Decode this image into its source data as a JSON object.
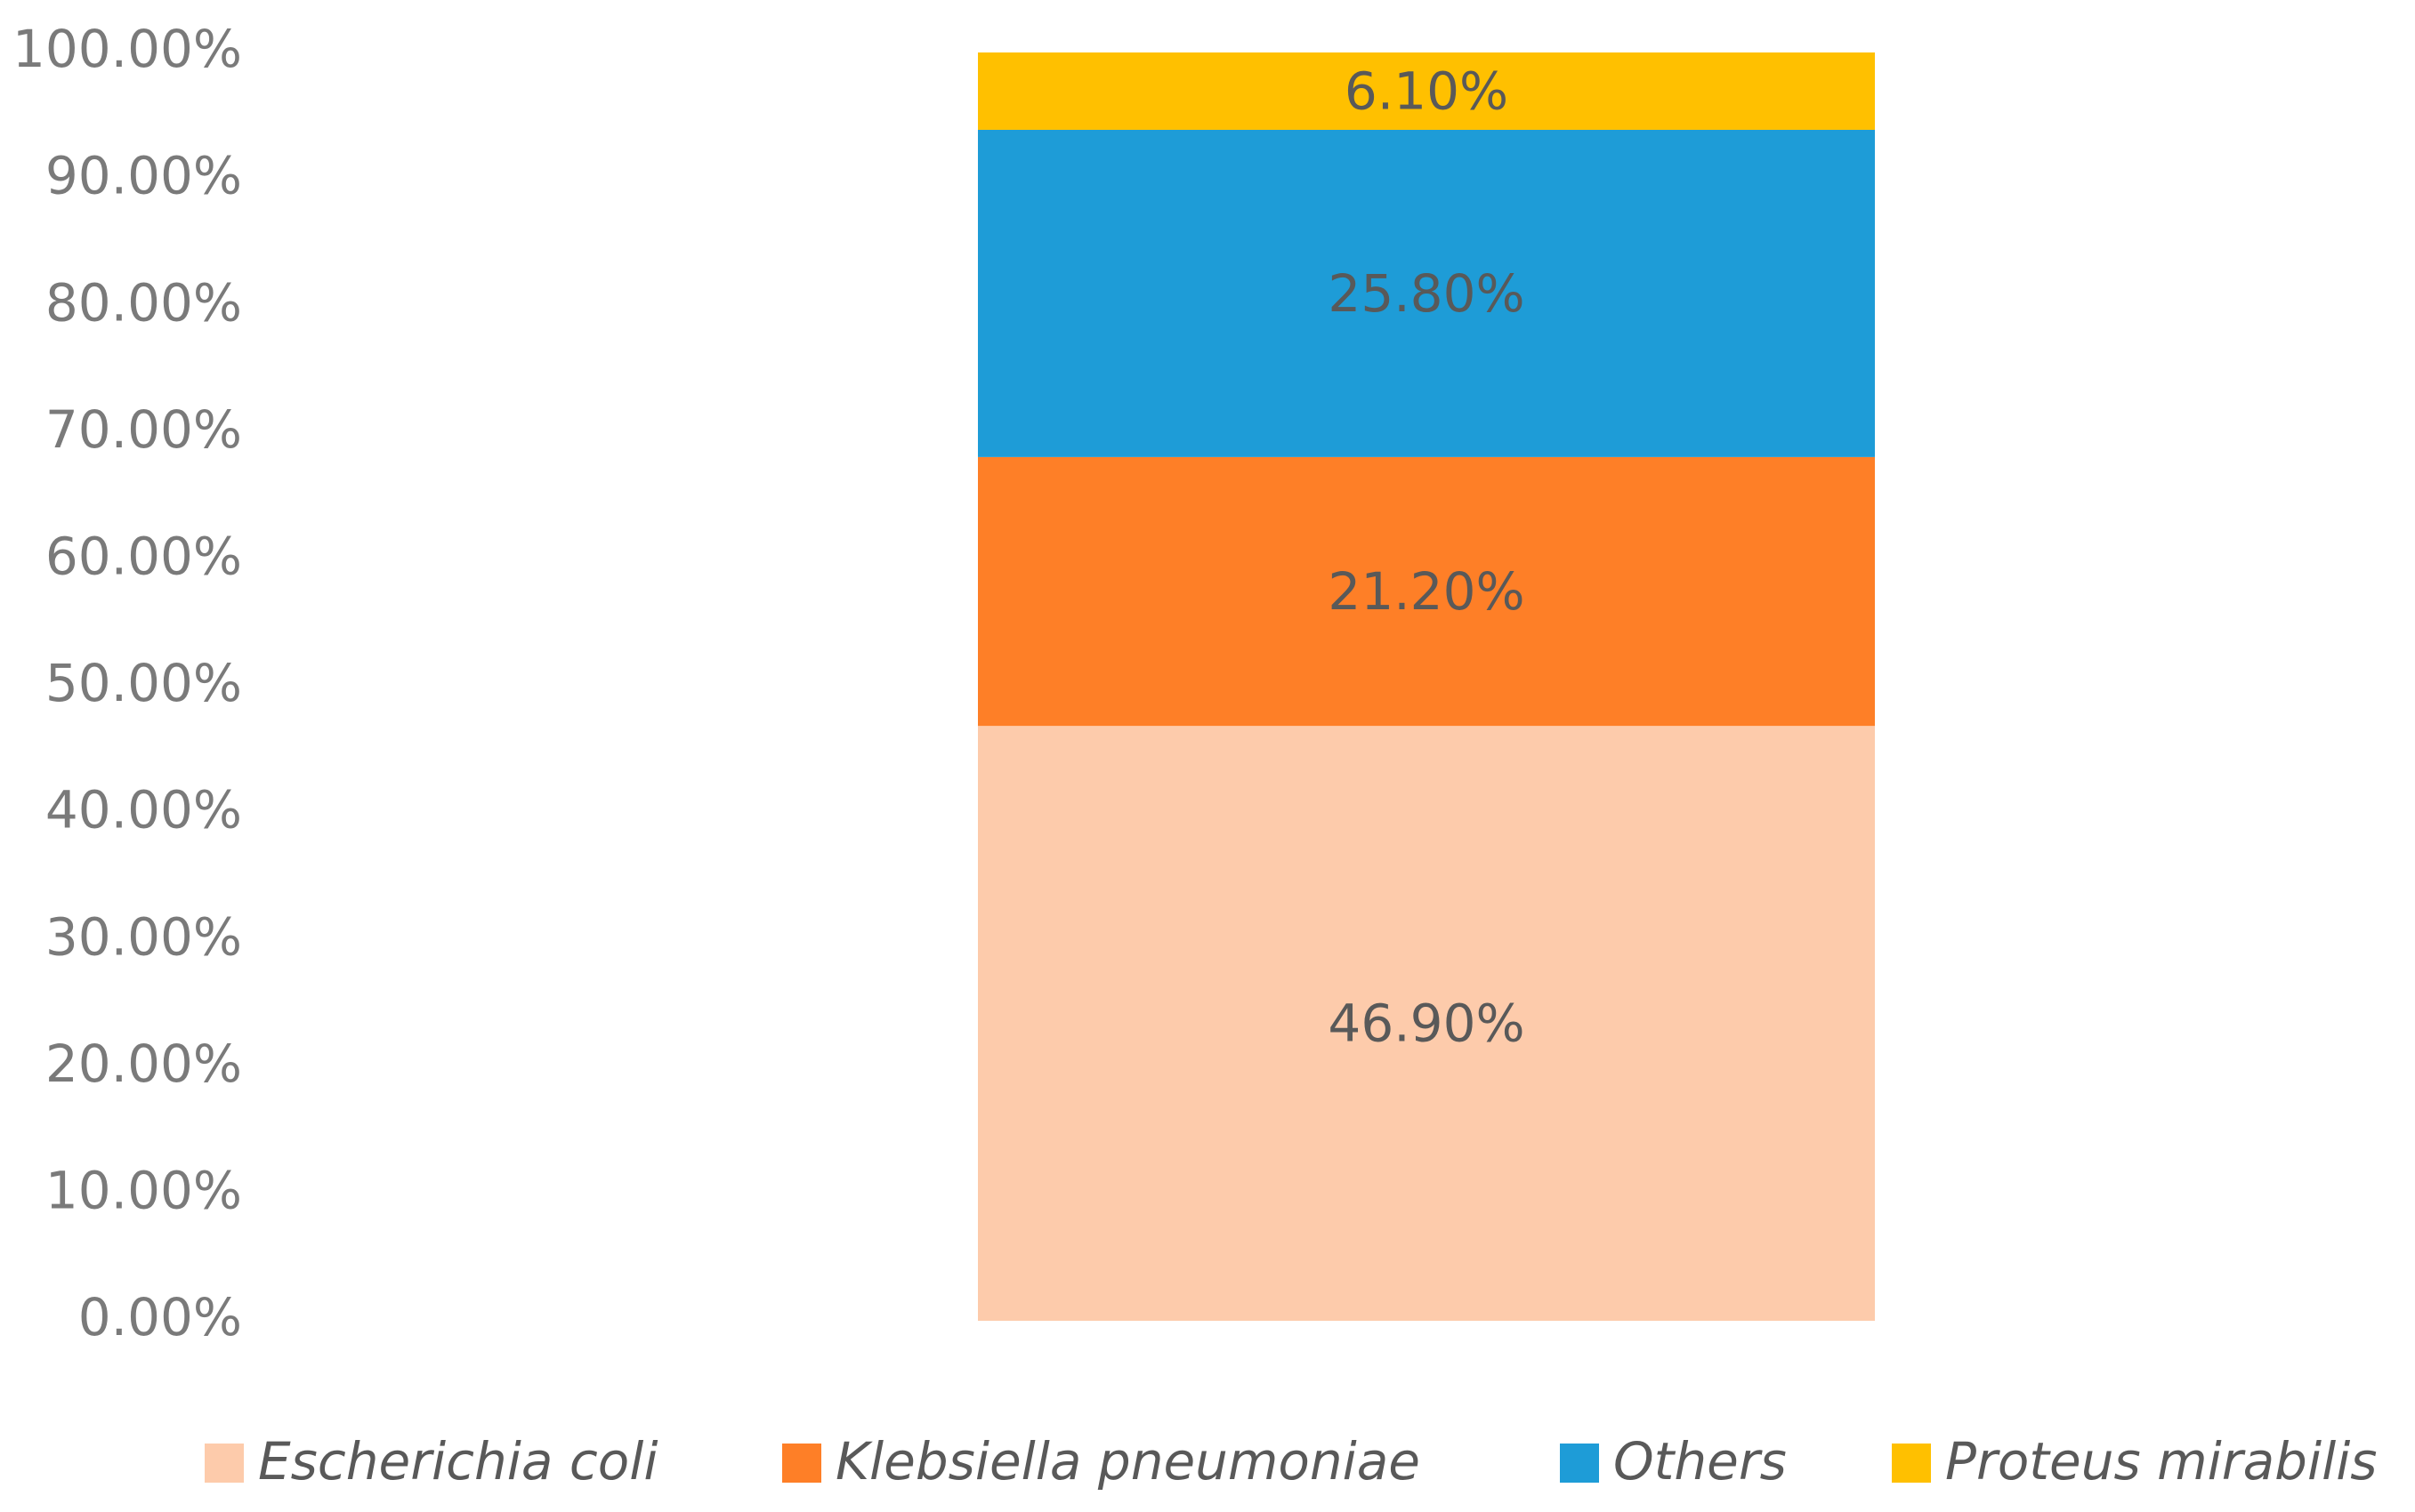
{
  "chart_data": {
    "type": "stacked_bar",
    "categories": [
      null
    ],
    "series": [
      {
        "name": "Escherichia coli",
        "color": "#fdcbab",
        "values": [
          46.9
        ],
        "value_labels": [
          "46.90%"
        ]
      },
      {
        "name": "Klebsiella pneumoniae",
        "color": "#fe7f27",
        "values": [
          21.2
        ],
        "value_labels": [
          "21.20%"
        ]
      },
      {
        "name": "Others",
        "color": "#1e9cd7",
        "values": [
          25.8
        ],
        "value_labels": [
          "25.80%"
        ]
      },
      {
        "name": "Proteus mirabilis",
        "color": "#ffc000",
        "values": [
          6.1
        ],
        "value_labels": [
          "6.10%"
        ]
      }
    ],
    "ylim": [
      0,
      100
    ],
    "yticks": [
      {
        "value": 0,
        "label": "0.00%"
      },
      {
        "value": 10,
        "label": "10.00%"
      },
      {
        "value": 20,
        "label": "20.00%"
      },
      {
        "value": 30,
        "label": "30.00%"
      },
      {
        "value": 40,
        "label": "40.00%"
      },
      {
        "value": 50,
        "label": "50.00%"
      },
      {
        "value": 60,
        "label": "60.00%"
      },
      {
        "value": 70,
        "label": "70.00%"
      },
      {
        "value": 80,
        "label": "80.00%"
      },
      {
        "value": 90,
        "label": "90.00%"
      },
      {
        "value": 100,
        "label": "100.00%"
      }
    ],
    "grid": false,
    "legend": "bottom"
  }
}
